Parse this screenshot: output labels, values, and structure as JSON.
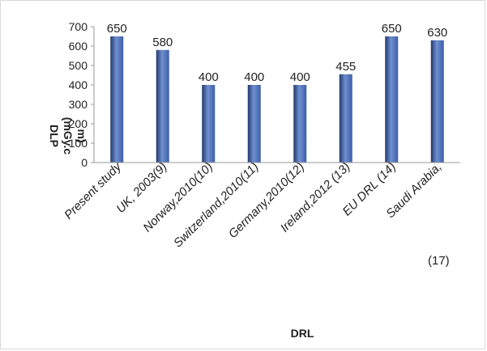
{
  "chart_data": {
    "type": "bar",
    "categories": [
      "Present study",
      "UK, 2003(9)",
      "Norway,2010(10)",
      "Switzerland,2010(11)",
      "Germany,2010(12)",
      "Ireland,2012 (13)",
      "EU DRL (14)",
      "Saudi Arabia,"
    ],
    "values": [
      650,
      580,
      400,
      400,
      400,
      455,
      650,
      630
    ],
    "data_labels": [
      "650",
      "580",
      "400",
      "400",
      "400",
      "455",
      "650",
      "630"
    ],
    "extra_tick_note": "(17)",
    "xlabel": "DRL",
    "ylabel_lines": [
      "DLP",
      "(mGy.c",
      "m)"
    ],
    "ylim": [
      0,
      700
    ],
    "yticks": [
      "0",
      "100",
      "200",
      "300",
      "400",
      "500",
      "600",
      "700"
    ],
    "grid": false,
    "legend": "none",
    "bar_color": "#3d5fa8",
    "bar_color_light": "#6f8fd0",
    "bar_color_dark": "#22386b"
  }
}
